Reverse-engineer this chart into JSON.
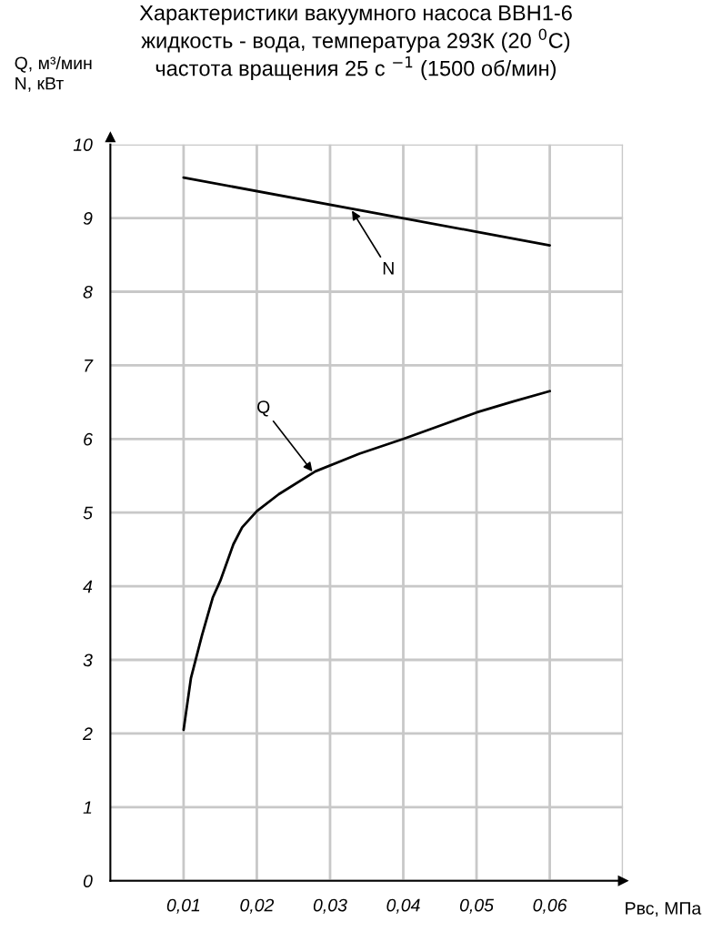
{
  "chart_data": {
    "type": "line",
    "title": "Характеристики вакуумного насоса ВВН1-6\nжидкость - вода, температура 293К (20 $^{0}$С)\nчастота вращения 25 с $^{−1}$ (1500 об/мин)",
    "ylabel": "Q, м³/мин\nN, кВт",
    "xlabel": "Рвс, МПа",
    "series": [
      {
        "color": "#000000",
        "x": [
          0.01,
          0.06
        ],
        "values": [
          9.55,
          8.63
        ]
      },
      {
        "color": "#000000",
        "x": [
          0.01,
          0.011,
          0.0125,
          0.014,
          0.015,
          0.0168,
          0.018,
          0.02,
          0.023,
          0.028,
          0.034,
          0.04,
          0.045,
          0.05,
          0.055,
          0.06
        ],
        "values": [
          2.05,
          2.75,
          3.33,
          3.85,
          4.07,
          4.57,
          4.8,
          5.02,
          5.25,
          5.56,
          5.8,
          6.0,
          6.18,
          6.36,
          6.51,
          6.65
        ]
      }
    ],
    "annotations": [
      {
        "text": "N",
        "x": 0.0328,
        "y": 9.13
      },
      {
        "text": "Q",
        "x": 0.0278,
        "y": 5.53
      }
    ],
    "xlim": [
      0,
      0.07
    ],
    "ylim": [
      0,
      10
    ],
    "xticks": [
      {
        "value": 0.01,
        "label": "0,01"
      },
      {
        "value": 0.02,
        "label": "0,02"
      },
      {
        "value": 0.03,
        "label": "0,03"
      },
      {
        "value": 0.04,
        "label": "0,04"
      },
      {
        "value": 0.05,
        "label": "0,05"
      },
      {
        "value": 0.06,
        "label": "0,06"
      },
      {
        "value": 0.07,
        "label": null
      }
    ],
    "yticks": [
      0,
      1,
      2,
      3,
      4,
      5,
      6,
      7,
      8,
      9,
      10
    ],
    "grid": true,
    "marker": "none",
    "line_style": "solid"
  }
}
